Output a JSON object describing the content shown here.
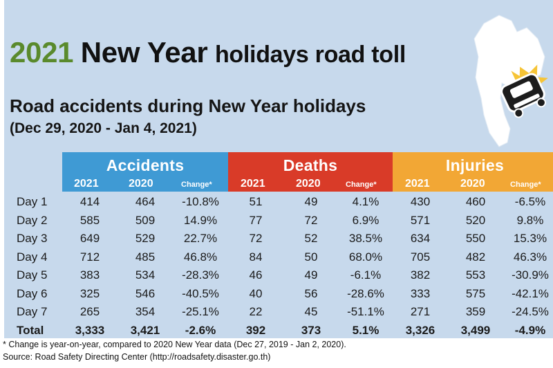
{
  "title": {
    "year": "2021",
    "main": "New Year",
    "rest": "holidays road toll"
  },
  "subtitle": "Road accidents during New Year holidays",
  "date_range": "(Dec 29, 2020 - Jan 4, 2021)",
  "groups": [
    {
      "label": "Accidents",
      "color": "#3f9ad4"
    },
    {
      "label": "Deaths",
      "color": "#d93b28"
    },
    {
      "label": "Injuries",
      "color": "#f2a735"
    }
  ],
  "subheaders": {
    "y2021": "2021",
    "y2020": "2020",
    "change": "Change*"
  },
  "rows": [
    {
      "day": "Day 1",
      "acc21": "414",
      "acc20": "464",
      "accchg": "-10.8%",
      "dea21": "51",
      "dea20": "49",
      "deachg": "4.1%",
      "inj21": "430",
      "inj20": "460",
      "injchg": "-6.5%"
    },
    {
      "day": "Day 2",
      "acc21": "585",
      "acc20": "509",
      "accchg": "14.9%",
      "dea21": "77",
      "dea20": "72",
      "deachg": "6.9%",
      "inj21": "571",
      "inj20": "520",
      "injchg": "9.8%"
    },
    {
      "day": "Day 3",
      "acc21": "649",
      "acc20": "529",
      "accchg": "22.7%",
      "dea21": "72",
      "dea20": "52",
      "deachg": "38.5%",
      "inj21": "634",
      "inj20": "550",
      "injchg": "15.3%"
    },
    {
      "day": "Day 4",
      "acc21": "712",
      "acc20": "485",
      "accchg": "46.8%",
      "dea21": "84",
      "dea20": "50",
      "deachg": "68.0%",
      "inj21": "705",
      "inj20": "482",
      "injchg": "46.3%"
    },
    {
      "day": "Day 5",
      "acc21": "383",
      "acc20": "534",
      "accchg": "-28.3%",
      "dea21": "46",
      "dea20": "49",
      "deachg": "-6.1%",
      "inj21": "382",
      "inj20": "553",
      "injchg": "-30.9%"
    },
    {
      "day": "Day 6",
      "acc21": "325",
      "acc20": "546",
      "accchg": "-40.5%",
      "dea21": "40",
      "dea20": "56",
      "deachg": "-28.6%",
      "inj21": "333",
      "inj20": "575",
      "injchg": "-42.1%"
    },
    {
      "day": "Day 7",
      "acc21": "265",
      "acc20": "354",
      "accchg": "-25.1%",
      "dea21": "22",
      "dea20": "45",
      "deachg": "-51.1%",
      "inj21": "271",
      "inj20": "359",
      "injchg": "-24.5%"
    }
  ],
  "total": {
    "day": "Total",
    "acc21": "3,333",
    "acc20": "3,421",
    "accchg": "-2.6%",
    "dea21": "392",
    "dea20": "373",
    "deachg": "5.1%",
    "inj21": "3,326",
    "inj20": "3,499",
    "injchg": "-4.9%"
  },
  "footnote": "* Change is year-on-year, compared to 2020 New Year data (Dec 27, 2019 - Jan 2, 2020).",
  "source": "Source: Road Safety Directing Center (http://roadsafety.disaster.go.th)",
  "icons": {
    "map": "thailand-map-icon",
    "crash": "overturned-car-icon"
  }
}
